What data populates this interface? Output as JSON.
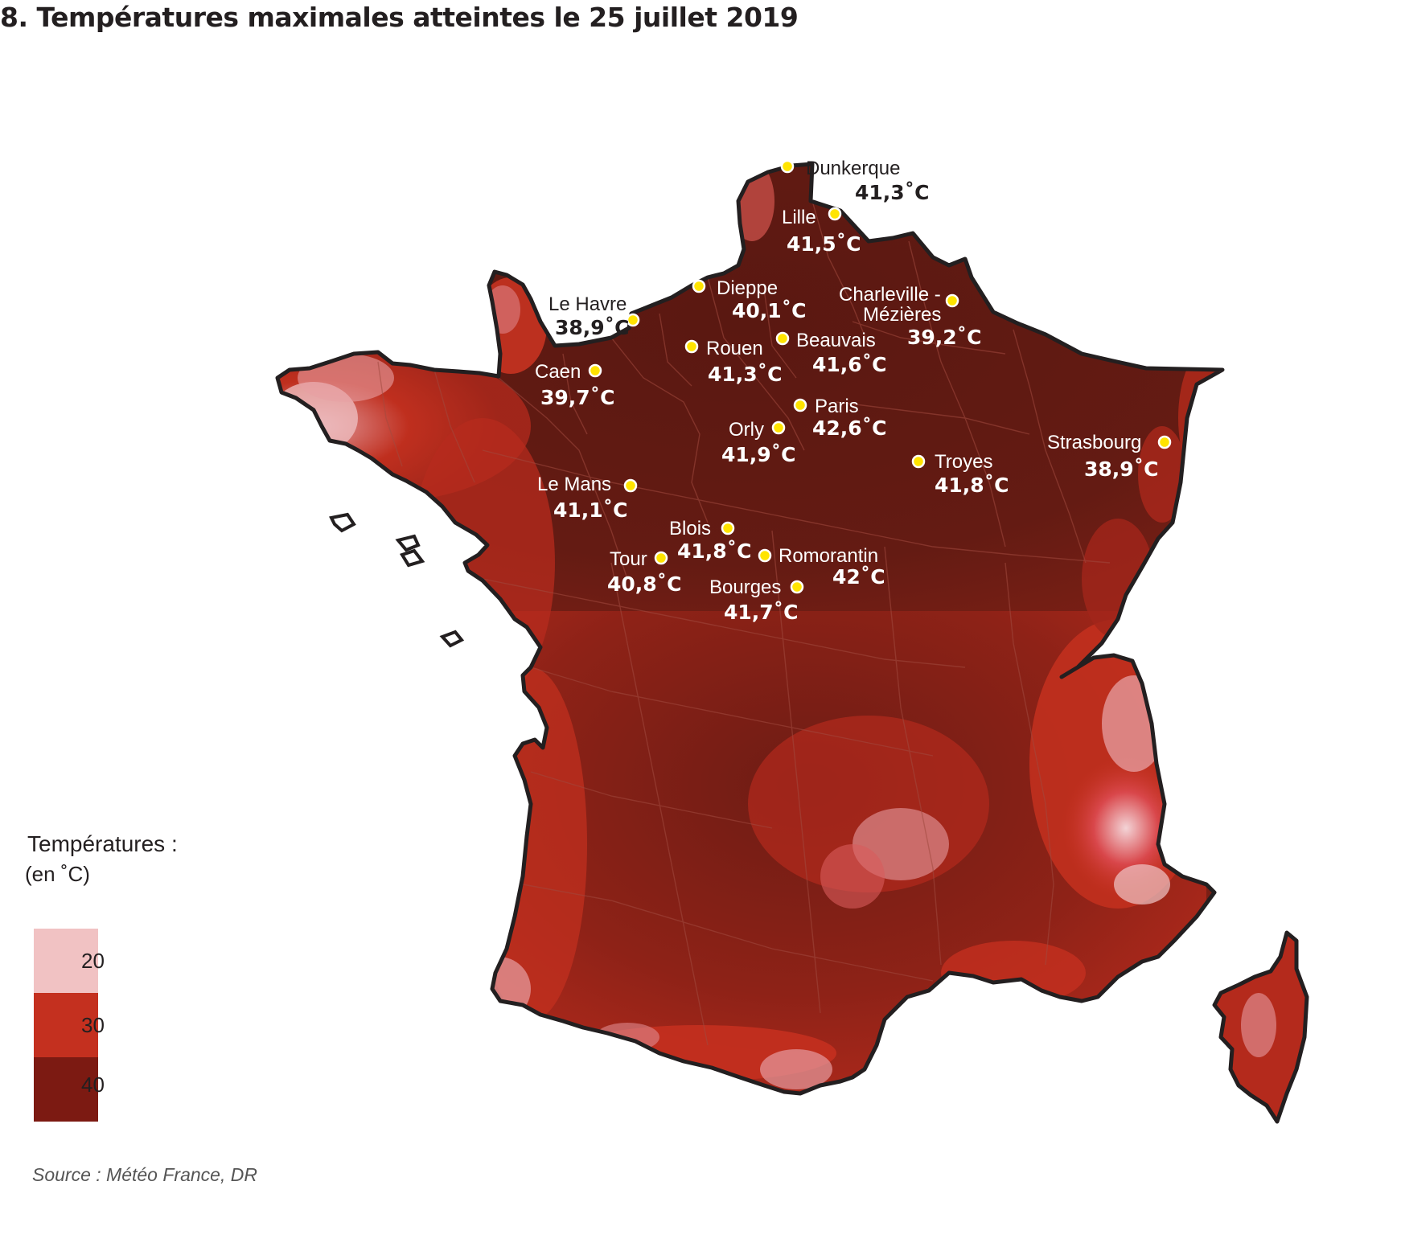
{
  "title": "8. Températures maximales atteintes le 25 juillet 2019",
  "legend": {
    "title": "Températures :",
    "unit": "(en ˚C)",
    "items": [
      {
        "label": "20",
        "color": "#f1c2c3"
      },
      {
        "label": "30",
        "color": "#c4301f"
      },
      {
        "label": "40",
        "color": "#7c1a12"
      }
    ]
  },
  "source": "Source : Météo France, DR",
  "colors": {
    "very_hot": "#5e1a12",
    "hot": "#8a2016",
    "warm": "#c4301f",
    "mild": "#f1c2c3",
    "coast": "#231f20",
    "marker": "#ffe400"
  },
  "cities": [
    {
      "name": "Dunkerque",
      "temp": "41,3˚C"
    },
    {
      "name": "Lille",
      "temp": "41,5˚C"
    },
    {
      "name": "Dieppe",
      "temp": "40,1˚C"
    },
    {
      "name": "Le Havre",
      "temp": "38,9˚C"
    },
    {
      "name": "Charleville -",
      "name2": "Mézières",
      "temp": "39,2˚C"
    },
    {
      "name": "Rouen",
      "temp": "41,3˚C"
    },
    {
      "name": "Beauvais",
      "temp": "41,6˚C"
    },
    {
      "name": "Caen",
      "temp": "39,7˚C"
    },
    {
      "name": "Paris",
      "temp": "42,6˚C"
    },
    {
      "name": "Orly",
      "temp": "41,9˚C"
    },
    {
      "name": "Troyes",
      "temp": "41,8˚C"
    },
    {
      "name": "Strasbourg",
      "temp": "38,9˚C"
    },
    {
      "name": "Le Mans",
      "temp": "41,1˚C"
    },
    {
      "name": "Blois",
      "temp": "41,8˚C"
    },
    {
      "name": "Tour",
      "temp": "40,8˚C"
    },
    {
      "name": "Romorantin",
      "temp": "42˚C"
    },
    {
      "name": "Bourges",
      "temp": "41,7˚C"
    }
  ]
}
